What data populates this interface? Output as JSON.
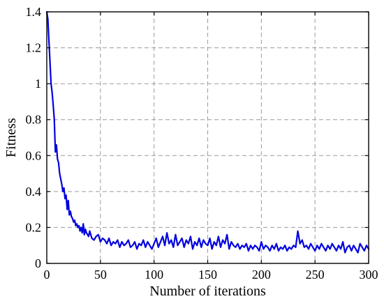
{
  "chart_data": {
    "type": "line",
    "title": "",
    "xlabel": "Number of iterations",
    "ylabel": "Fitness",
    "xlim": [
      0,
      300
    ],
    "ylim": [
      0,
      1.4
    ],
    "xticks": [
      0,
      50,
      100,
      150,
      200,
      250,
      300
    ],
    "yticks": [
      0,
      0.2,
      0.4,
      0.6,
      0.8,
      1,
      1.2,
      1.4
    ],
    "xtick_labels": [
      "0",
      "50",
      "100",
      "150",
      "200",
      "250",
      "300"
    ],
    "ytick_labels": [
      "0",
      "0.2",
      "0.4",
      "0.6",
      "0.8",
      "1",
      "1.2",
      "1.4"
    ],
    "grid": true,
    "legend": "none",
    "series": [
      {
        "color": "#0000dd",
        "x": [
          0,
          1,
          2,
          3,
          4,
          5,
          6,
          7,
          8,
          9,
          10,
          11,
          12,
          13,
          14,
          15,
          16,
          17,
          18,
          19,
          20,
          21,
          22,
          23,
          24,
          25,
          26,
          27,
          28,
          29,
          30,
          31,
          32,
          33,
          34,
          35,
          36,
          37,
          38,
          39,
          40,
          42,
          44,
          46,
          48,
          50,
          52,
          54,
          56,
          58,
          60,
          62,
          64,
          66,
          68,
          70,
          72,
          74,
          76,
          78,
          80,
          82,
          84,
          86,
          88,
          90,
          92,
          94,
          96,
          98,
          100,
          102,
          104,
          106,
          108,
          110,
          112,
          114,
          116,
          118,
          120,
          122,
          124,
          126,
          128,
          130,
          132,
          134,
          136,
          138,
          140,
          142,
          144,
          146,
          148,
          150,
          152,
          154,
          156,
          158,
          160,
          162,
          164,
          166,
          168,
          170,
          172,
          174,
          176,
          178,
          180,
          182,
          184,
          186,
          188,
          190,
          192,
          194,
          196,
          198,
          200,
          202,
          204,
          206,
          208,
          210,
          212,
          214,
          216,
          218,
          220,
          222,
          224,
          226,
          228,
          230,
          232,
          234,
          236,
          238,
          240,
          242,
          244,
          246,
          248,
          250,
          252,
          254,
          256,
          258,
          260,
          262,
          264,
          266,
          268,
          270,
          272,
          274,
          276,
          278,
          280,
          282,
          284,
          286,
          288,
          290,
          292,
          294,
          296,
          298,
          300
        ],
        "y": [
          1.4,
          1.36,
          1.24,
          1.12,
          1.0,
          0.95,
          0.88,
          0.8,
          0.62,
          0.66,
          0.58,
          0.56,
          0.5,
          0.47,
          0.44,
          0.4,
          0.42,
          0.36,
          0.38,
          0.3,
          0.35,
          0.27,
          0.29,
          0.26,
          0.25,
          0.23,
          0.24,
          0.21,
          0.22,
          0.2,
          0.21,
          0.18,
          0.2,
          0.17,
          0.22,
          0.16,
          0.19,
          0.17,
          0.16,
          0.15,
          0.18,
          0.14,
          0.13,
          0.15,
          0.16,
          0.12,
          0.14,
          0.13,
          0.11,
          0.14,
          0.1,
          0.12,
          0.11,
          0.13,
          0.09,
          0.12,
          0.1,
          0.11,
          0.13,
          0.09,
          0.1,
          0.12,
          0.08,
          0.11,
          0.1,
          0.13,
          0.09,
          0.12,
          0.1,
          0.08,
          0.11,
          0.14,
          0.09,
          0.12,
          0.15,
          0.1,
          0.17,
          0.11,
          0.13,
          0.09,
          0.16,
          0.1,
          0.12,
          0.14,
          0.09,
          0.13,
          0.11,
          0.15,
          0.08,
          0.12,
          0.1,
          0.14,
          0.09,
          0.13,
          0.11,
          0.1,
          0.14,
          0.08,
          0.12,
          0.1,
          0.15,
          0.09,
          0.13,
          0.11,
          0.16,
          0.08,
          0.12,
          0.1,
          0.09,
          0.11,
          0.08,
          0.1,
          0.09,
          0.11,
          0.07,
          0.1,
          0.08,
          0.1,
          0.09,
          0.07,
          0.12,
          0.08,
          0.1,
          0.09,
          0.07,
          0.1,
          0.08,
          0.11,
          0.07,
          0.09,
          0.08,
          0.1,
          0.07,
          0.09,
          0.08,
          0.1,
          0.09,
          0.18,
          0.11,
          0.13,
          0.09,
          0.1,
          0.08,
          0.11,
          0.09,
          0.07,
          0.1,
          0.08,
          0.11,
          0.09,
          0.07,
          0.1,
          0.08,
          0.11,
          0.09,
          0.07,
          0.1,
          0.08,
          0.12,
          0.06,
          0.09,
          0.1,
          0.07,
          0.1,
          0.08,
          0.06,
          0.11,
          0.09,
          0.07,
          0.1,
          0.08
        ]
      }
    ]
  }
}
